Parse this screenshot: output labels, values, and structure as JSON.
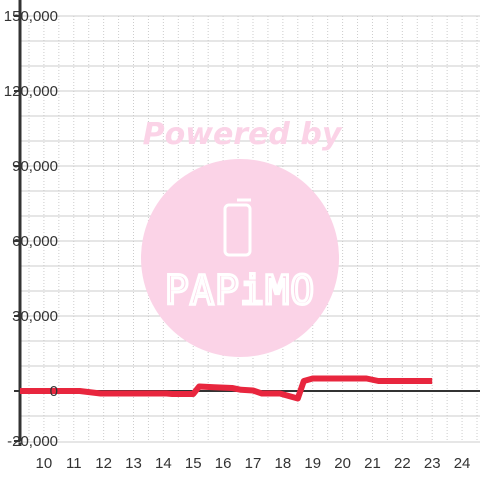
{
  "chart_data": {
    "type": "line",
    "title": "",
    "xlabel": "",
    "ylabel": "",
    "xlim": [
      9.2,
      24.6
    ],
    "ylim": [
      -20000,
      150000
    ],
    "x_ticks": [
      "10",
      "11",
      "12",
      "13",
      "14",
      "15",
      "16",
      "17",
      "18",
      "19",
      "20",
      "21",
      "22",
      "23",
      "24"
    ],
    "y_ticks": [
      "150,000",
      "120,000",
      "90,000",
      "60,000",
      "30,000",
      "0",
      "-20,000"
    ],
    "grid": true,
    "legend": "none",
    "series": [
      {
        "color": "#e8263e",
        "points": [
          [
            9.2,
            0
          ],
          [
            11.2,
            0
          ],
          [
            11.9,
            -1000
          ],
          [
            14.1,
            -1000
          ],
          [
            14.3,
            -1200
          ],
          [
            15.0,
            -1200
          ],
          [
            15.2,
            1800
          ],
          [
            15.7,
            1500
          ],
          [
            16.3,
            1200
          ],
          [
            16.6,
            500
          ],
          [
            17.0,
            200
          ],
          [
            17.3,
            -1000
          ],
          [
            17.9,
            -1000
          ],
          [
            18.2,
            -2000
          ],
          [
            18.5,
            -3000
          ],
          [
            18.7,
            4000
          ],
          [
            19.0,
            5000
          ],
          [
            20.8,
            5000
          ],
          [
            21.2,
            4000
          ],
          [
            23.0,
            4000
          ]
        ]
      }
    ]
  },
  "watermark": {
    "powered_by": "Powered by",
    "brand": "PAPiMO"
  }
}
